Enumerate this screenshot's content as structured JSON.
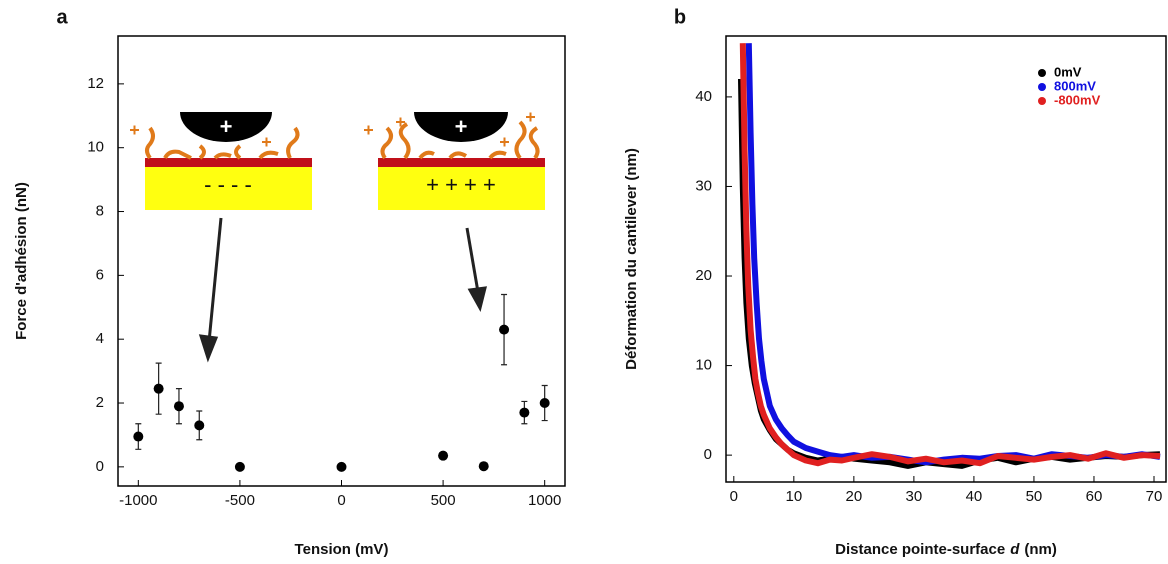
{
  "chart_data": [
    {
      "type": "scatter",
      "panel_label": "a",
      "x_label": "Tension (mV)",
      "y_label": "Force d'adhésion (nN)",
      "xlim": [
        -1100,
        1100
      ],
      "ylim": [
        -0.6,
        13.5
      ],
      "xticks": [
        -1000,
        -500,
        0,
        500,
        1000
      ],
      "yticks": [
        0,
        2,
        4,
        6,
        8,
        10,
        12
      ],
      "annotations": [
        "+",
        "- - - -",
        "+",
        "+ + + +"
      ],
      "series": [
        {
          "color": "#000000",
          "x": [
            -1000,
            -900,
            -800,
            -700,
            -500,
            0,
            500,
            700,
            800,
            900,
            1000
          ],
          "values": [
            0.95,
            2.45,
            1.9,
            1.3,
            0,
            0,
            0.35,
            0.02,
            4.3,
            1.7,
            2.0
          ],
          "errors": [
            0.4,
            0.8,
            0.55,
            0.45,
            null,
            null,
            null,
            null,
            1.1,
            0.35,
            0.55
          ]
        }
      ]
    },
    {
      "type": "line",
      "panel_label": "b",
      "x_label": "Distance pointe-surface",
      "x_label_symbol": "d",
      "x_label_unit": "(nm)",
      "y_label": "Déformation du cantilever (nm)",
      "xlim": [
        -1.3,
        72
      ],
      "ylim": [
        -3,
        46.8
      ],
      "xticks": [
        0,
        10,
        20,
        30,
        40,
        50,
        60,
        70
      ],
      "yticks": [
        0,
        10,
        20,
        30,
        40
      ],
      "series": [
        {
          "name": "0mV",
          "color": "#000000",
          "x": [
            1.2,
            1.5,
            1.8,
            2.1,
            2.5,
            3,
            3.5,
            4,
            4.5,
            5,
            6,
            7,
            8,
            9,
            10,
            12,
            14,
            16,
            18,
            20,
            23,
            26,
            29,
            32,
            35,
            38,
            41,
            44,
            47,
            50,
            53,
            56,
            59,
            62,
            65,
            68,
            71
          ],
          "values": [
            42,
            30,
            22,
            17,
            13,
            10,
            8,
            6.5,
            5,
            4,
            2.8,
            1.8,
            1.2,
            0.6,
            0.2,
            -0.3,
            -0.6,
            -0.4,
            -0.2,
            -0.4,
            -0.6,
            -0.8,
            -1.2,
            -0.8,
            -1,
            -1.2,
            -0.6,
            -0.3,
            -0.8,
            -0.4,
            -0.2,
            -0.5,
            -0.3,
            -0.1,
            -0.2,
            0,
            0.1
          ]
        },
        {
          "name": "800mV",
          "color": "#1010e0",
          "x": [
            2.5,
            2.8,
            3.1,
            3.4,
            3.8,
            4.2,
            4.6,
            5,
            5.5,
            6,
            7,
            8,
            9,
            10,
            12,
            14,
            16,
            18,
            20,
            23,
            26,
            29,
            32,
            35,
            38,
            41,
            44,
            47,
            50,
            53,
            56,
            59,
            62,
            65,
            68,
            71
          ],
          "values": [
            46,
            36,
            28,
            22,
            17,
            13,
            10.5,
            8.5,
            7,
            5.5,
            4,
            3,
            2.2,
            1.5,
            0.8,
            0.4,
            0,
            -0.2,
            0,
            -0.3,
            -0.2,
            -0.5,
            -0.8,
            -0.5,
            -0.3,
            -0.4,
            -0.1,
            0,
            -0.4,
            0.1,
            -0.1,
            -0.3,
            0,
            -0.2,
            0.1,
            -0.2
          ]
        },
        {
          "name": "-800mV",
          "color": "#e02020",
          "x": [
            1.5,
            1.8,
            2.1,
            2.4,
            2.8,
            3.2,
            3.6,
            4,
            4.5,
            5,
            6,
            7,
            8,
            9,
            10,
            12,
            14,
            16,
            18,
            20,
            23,
            26,
            29,
            32,
            35,
            38,
            41,
            44,
            47,
            50,
            53,
            56,
            59,
            62,
            65,
            68,
            71
          ],
          "values": [
            46,
            34,
            25,
            19,
            14,
            11,
            8.5,
            7,
            5.5,
            4.5,
            3,
            2,
            1.2,
            0.6,
            0,
            -0.6,
            -0.9,
            -0.5,
            -0.6,
            -0.3,
            0.1,
            -0.2,
            -0.7,
            -0.4,
            -0.8,
            -0.6,
            -0.9,
            -0.1,
            -0.3,
            -0.5,
            -0.2,
            0,
            -0.4,
            0.2,
            -0.3,
            0,
            -0.1
          ]
        }
      ]
    }
  ]
}
